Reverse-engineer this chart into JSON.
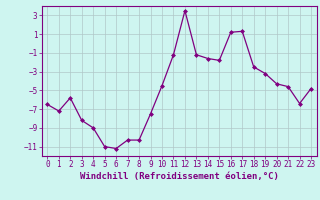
{
  "x": [
    0,
    1,
    2,
    3,
    4,
    5,
    6,
    7,
    8,
    9,
    10,
    11,
    12,
    13,
    14,
    15,
    16,
    17,
    18,
    19,
    20,
    21,
    22,
    23
  ],
  "y": [
    -6.5,
    -7.2,
    -5.8,
    -8.2,
    -9.0,
    -11.0,
    -11.2,
    -10.3,
    -10.3,
    -7.5,
    -4.5,
    -1.2,
    3.5,
    -1.2,
    -1.6,
    -1.8,
    1.2,
    1.3,
    -2.5,
    -3.2,
    -4.3,
    -4.6,
    -6.4,
    -4.8
  ],
  "line_color": "#800080",
  "marker": "D",
  "marker_size": 2,
  "background_color": "#cef5f0",
  "grid_color": "#b0c8c8",
  "xlabel": "Windchill (Refroidissement éolien,°C)",
  "ylim": [
    -12,
    4
  ],
  "xlim": [
    -0.5,
    23.5
  ],
  "yticks": [
    3,
    1,
    -1,
    -3,
    -5,
    -7,
    -9,
    -11
  ],
  "xticks": [
    0,
    1,
    2,
    3,
    4,
    5,
    6,
    7,
    8,
    9,
    10,
    11,
    12,
    13,
    14,
    15,
    16,
    17,
    18,
    19,
    20,
    21,
    22,
    23
  ],
  "tick_color": "#800080",
  "label_color": "#800080",
  "xlabel_fontsize": 6.5,
  "tick_fontsize": 5.5
}
